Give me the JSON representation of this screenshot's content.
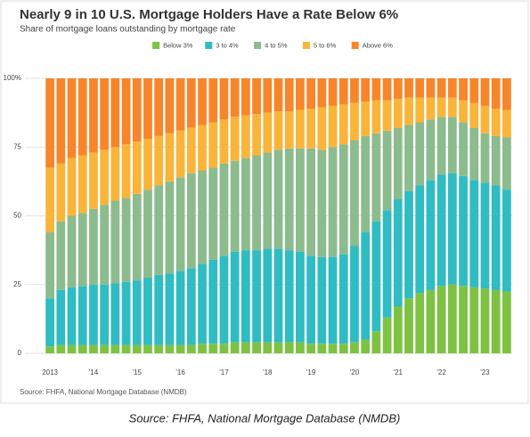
{
  "chart_data": {
    "type": "stacked_bar",
    "title": "Nearly 9 in 10 U.S. Mortgage Holders Have a Rate Below 6%",
    "subtitle": "Share of mortgage loans outstanding by mortgage rate",
    "source": "Source: FHFA, National Mortgage Database (NMDB)",
    "caption": "Source: FHFA, National Mortgage Database (NMDB)",
    "legend": "top",
    "grid": true,
    "ylim": [
      0,
      100
    ],
    "yticks": [
      0,
      25,
      50,
      75,
      {
        "value": 100,
        "label": "100%"
      }
    ],
    "categories": [
      "2013",
      null,
      null,
      null,
      "'14",
      null,
      null,
      null,
      "'15",
      null,
      null,
      null,
      "'16",
      null,
      null,
      null,
      "'17",
      null,
      null,
      null,
      "'18",
      null,
      null,
      null,
      "'19",
      null,
      null,
      null,
      "'20",
      null,
      null,
      null,
      "'21",
      null,
      null,
      null,
      "'22",
      null,
      null,
      null,
      "'23",
      null,
      null
    ],
    "series": [
      {
        "name": "Below 3%",
        "color": "#7dc242",
        "values": [
          2.5,
          3,
          3,
          3,
          3,
          3,
          3,
          3,
          3,
          3,
          3,
          3,
          3,
          3,
          3.5,
          3.5,
          3.5,
          4,
          4,
          4,
          4,
          4,
          4,
          4,
          3.5,
          3.5,
          3.5,
          3.5,
          4,
          5,
          8,
          13,
          17,
          20,
          22,
          23,
          24.5,
          25,
          24.5,
          24,
          23.5,
          23,
          22.5
        ]
      },
      {
        "name": "3 to 4%",
        "color": "#2fbcc2",
        "values": [
          17.5,
          20,
          21,
          21.5,
          22,
          22,
          22.5,
          23,
          23.5,
          24.5,
          25.5,
          26,
          27,
          28,
          29,
          30.5,
          32,
          33,
          33.5,
          33.5,
          34,
          34,
          33.5,
          33,
          32,
          31.5,
          31.5,
          32.5,
          35,
          39,
          40,
          39,
          39,
          39,
          39,
          40,
          40.5,
          40.5,
          40,
          39,
          38.5,
          38,
          37
        ]
      },
      {
        "name": "4 to 5%",
        "color": "#8cbb8e",
        "values": [
          24,
          25,
          26,
          26.5,
          27.5,
          29,
          30,
          30.5,
          31.5,
          32,
          32.5,
          33.5,
          34,
          34.5,
          34,
          33.5,
          33.5,
          33,
          33.5,
          34.5,
          35,
          36,
          37,
          37.5,
          39,
          39,
          40,
          40,
          38.5,
          35,
          32,
          29,
          26,
          24,
          23,
          22,
          21,
          20.5,
          19.5,
          19,
          18,
          18,
          19
        ]
      },
      {
        "name": "5 to 6%",
        "color": "#f9b43a",
        "values": [
          23.5,
          21,
          21,
          21,
          20.5,
          20,
          19.5,
          19.5,
          19,
          18.5,
          18,
          17.5,
          17,
          16.5,
          16.5,
          16.5,
          16,
          16,
          15.5,
          15,
          14.5,
          14,
          13.5,
          14,
          14.5,
          15.5,
          15,
          14.5,
          13.5,
          12.5,
          12,
          11,
          10.5,
          10,
          9,
          8,
          7,
          7,
          8,
          9,
          10,
          10,
          10
        ]
      },
      {
        "name": "Above 6%",
        "color": "#f7862b",
        "values": [
          32.5,
          31,
          29,
          28,
          27,
          26,
          25,
          24,
          23,
          22,
          21,
          20,
          19,
          18,
          17,
          16,
          15,
          14,
          13.5,
          13,
          12.5,
          12,
          12,
          11.5,
          11,
          10.5,
          10,
          9.5,
          9,
          8.5,
          8,
          8,
          7.5,
          7,
          7,
          7,
          7,
          7,
          8,
          9,
          10,
          11,
          11.5
        ]
      }
    ]
  }
}
